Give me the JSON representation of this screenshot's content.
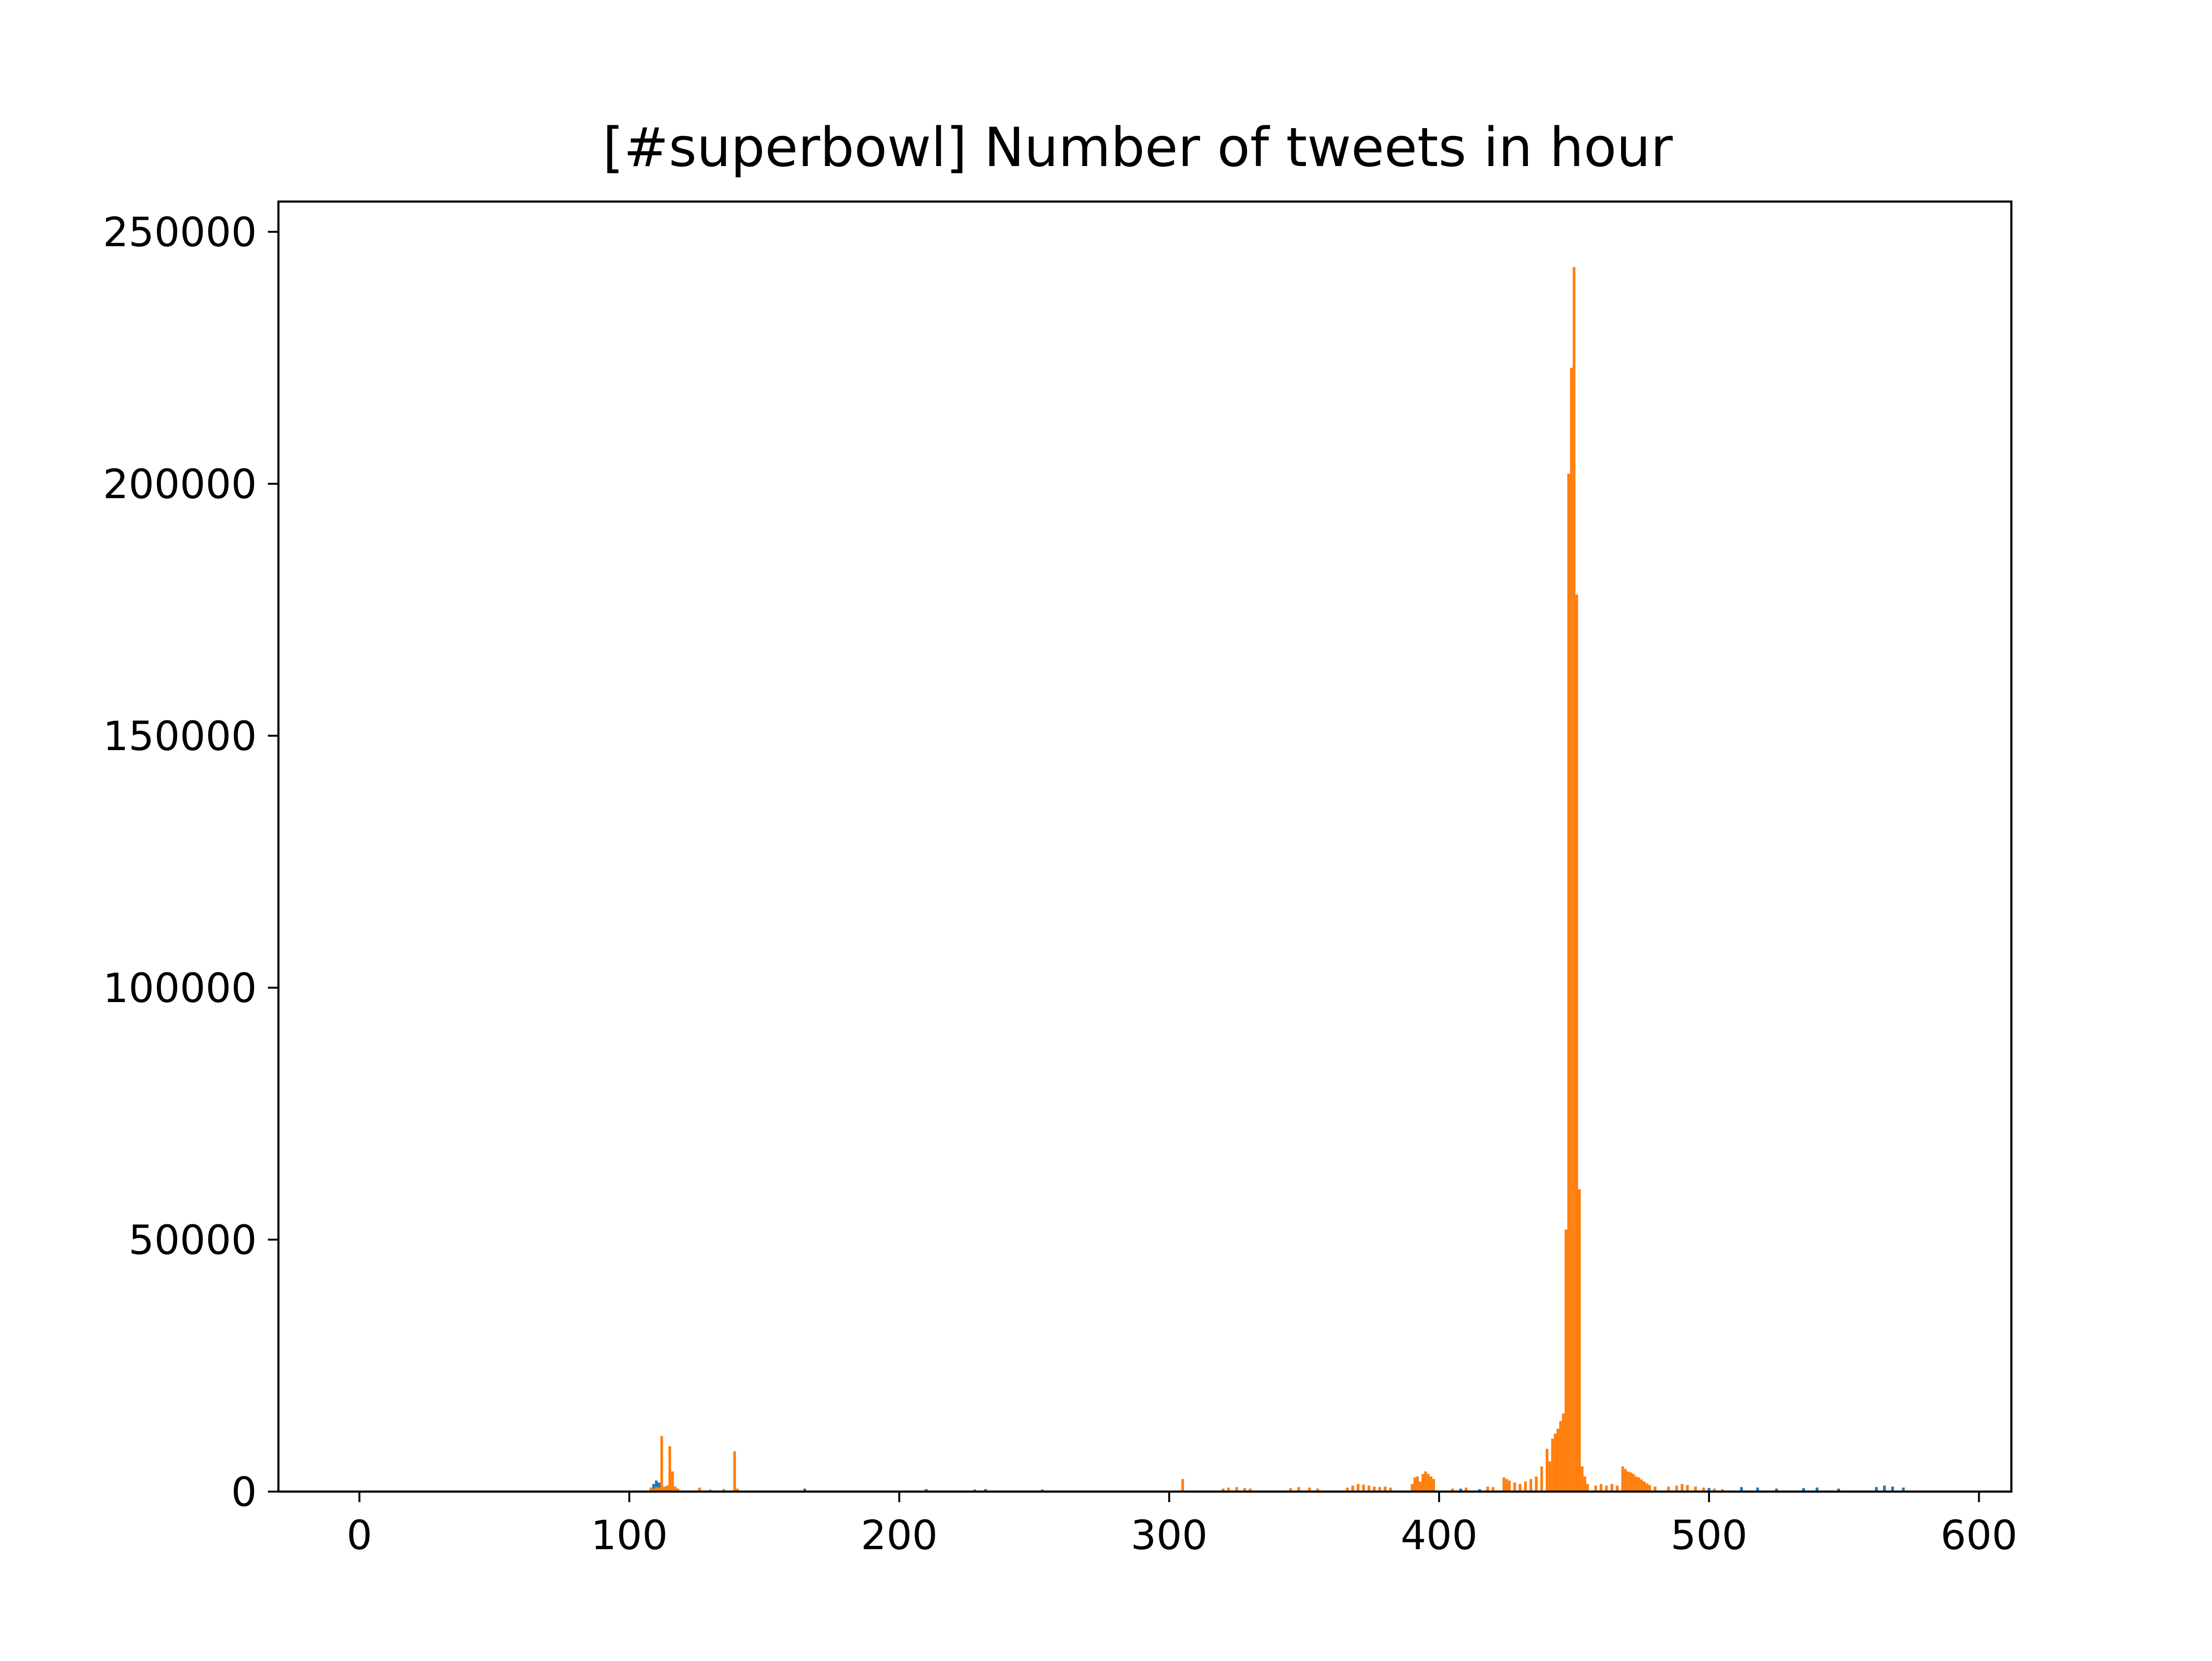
{
  "chart_data": {
    "type": "bar",
    "title": "[#superbowl] Number of tweets in hour",
    "xlabel": "",
    "ylabel": "",
    "xlim": [
      -30,
      612
    ],
    "ylim": [
      0,
      256000
    ],
    "x_ticks": [
      0,
      100,
      200,
      300,
      400,
      500,
      600
    ],
    "x_tick_labels": [
      "0",
      "100",
      "200",
      "300",
      "400",
      "500",
      "600"
    ],
    "y_ticks": [
      0,
      50000,
      100000,
      150000,
      200000,
      250000
    ],
    "y_tick_labels": [
      "0",
      "50000",
      "100000",
      "150000",
      "200000",
      "250000"
    ],
    "grid": false,
    "legend": "none",
    "series": [
      {
        "color": "#1f77b4",
        "points": [
          [
            109,
            1500
          ],
          [
            110,
            2200
          ],
          [
            111,
            1800
          ],
          [
            165,
            600
          ],
          [
            210,
            500
          ],
          [
            228,
            400
          ],
          [
            232,
            500
          ],
          [
            253,
            400
          ],
          [
            305,
            400
          ],
          [
            320,
            500
          ],
          [
            395,
            700
          ],
          [
            408,
            600
          ],
          [
            415,
            500
          ],
          [
            500,
            700
          ],
          [
            512,
            900
          ],
          [
            518,
            800
          ],
          [
            525,
            600
          ],
          [
            535,
            700
          ],
          [
            540,
            800
          ],
          [
            548,
            600
          ],
          [
            562,
            900
          ],
          [
            565,
            1200
          ],
          [
            568,
            1000
          ],
          [
            572,
            800
          ]
        ]
      },
      {
        "color": "#ff7f0e",
        "points": [
          [
            108,
            800
          ],
          [
            109,
            600
          ],
          [
            110,
            900
          ],
          [
            111,
            800
          ],
          [
            112,
            11000
          ],
          [
            113,
            1000
          ],
          [
            114,
            1200
          ],
          [
            115,
            9000
          ],
          [
            116,
            4000
          ],
          [
            117,
            1000
          ],
          [
            118,
            600
          ],
          [
            126,
            800
          ],
          [
            130,
            400
          ],
          [
            135,
            500
          ],
          [
            139,
            8000
          ],
          [
            140,
            600
          ],
          [
            305,
            2500
          ],
          [
            320,
            600
          ],
          [
            322,
            800
          ],
          [
            325,
            900
          ],
          [
            328,
            700
          ],
          [
            330,
            600
          ],
          [
            345,
            700
          ],
          [
            348,
            900
          ],
          [
            352,
            800
          ],
          [
            355,
            600
          ],
          [
            366,
            800
          ],
          [
            368,
            1200
          ],
          [
            370,
            1500
          ],
          [
            372,
            1400
          ],
          [
            374,
            1200
          ],
          [
            376,
            1000
          ],
          [
            378,
            900
          ],
          [
            380,
            1000
          ],
          [
            382,
            800
          ],
          [
            390,
            1500
          ],
          [
            391,
            2800
          ],
          [
            392,
            3000
          ],
          [
            393,
            2000
          ],
          [
            394,
            3500
          ],
          [
            395,
            4000
          ],
          [
            396,
            3500
          ],
          [
            397,
            3000
          ],
          [
            398,
            2500
          ],
          [
            405,
            600
          ],
          [
            410,
            800
          ],
          [
            418,
            1000
          ],
          [
            420,
            900
          ],
          [
            424,
            2800
          ],
          [
            425,
            2500
          ],
          [
            426,
            2200
          ],
          [
            428,
            1800
          ],
          [
            430,
            1500
          ],
          [
            432,
            2000
          ],
          [
            434,
            2500
          ],
          [
            436,
            3000
          ],
          [
            438,
            5000
          ],
          [
            440,
            8500
          ],
          [
            441,
            6000
          ],
          [
            442,
            10500
          ],
          [
            443,
            11500
          ],
          [
            444,
            12500
          ],
          [
            445,
            14000
          ],
          [
            446,
            15500
          ],
          [
            447,
            52000
          ],
          [
            448,
            202000
          ],
          [
            449,
            223000
          ],
          [
            450,
            243000
          ],
          [
            451,
            178000
          ],
          [
            452,
            60000
          ],
          [
            453,
            5000
          ],
          [
            454,
            3000
          ],
          [
            455,
            1500
          ],
          [
            458,
            1200
          ],
          [
            460,
            1500
          ],
          [
            462,
            1200
          ],
          [
            464,
            1500
          ],
          [
            466,
            1200
          ],
          [
            468,
            5000
          ],
          [
            469,
            4500
          ],
          [
            470,
            4000
          ],
          [
            471,
            3800
          ],
          [
            472,
            3500
          ],
          [
            473,
            3000
          ],
          [
            474,
            2800
          ],
          [
            475,
            2400
          ],
          [
            476,
            2000
          ],
          [
            477,
            1600
          ],
          [
            478,
            1300
          ],
          [
            480,
            1000
          ],
          [
            485,
            1000
          ],
          [
            488,
            1200
          ],
          [
            490,
            1500
          ],
          [
            492,
            1300
          ],
          [
            495,
            1000
          ],
          [
            498,
            800
          ],
          [
            502,
            600
          ],
          [
            505,
            500
          ]
        ]
      }
    ]
  }
}
